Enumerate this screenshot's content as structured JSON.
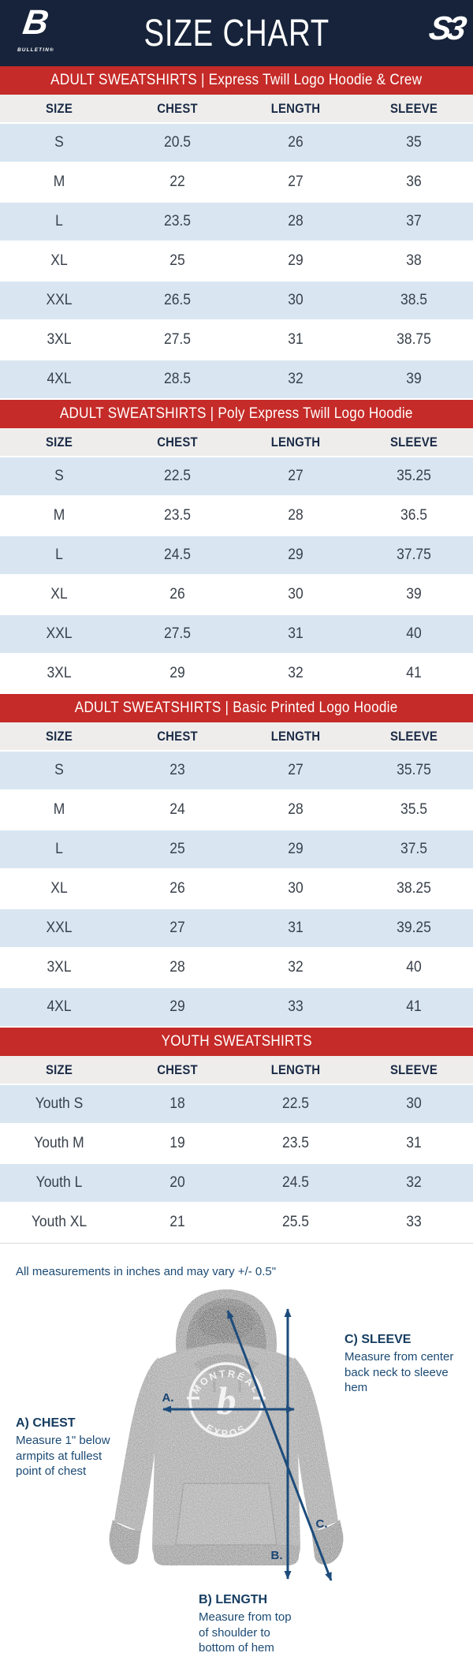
{
  "header": {
    "title": "SIZE CHART",
    "left_logo_letter": "B",
    "left_logo_text": "BULLETIN®",
    "right_logo_text": "S3"
  },
  "tables": [
    {
      "banner": "ADULT SWEATSHIRTS | Express Twill Logo Hoodie & Crew",
      "columns": [
        "SIZE",
        "CHEST",
        "LENGTH",
        "SLEEVE"
      ],
      "rows": [
        [
          "S",
          "20.5",
          "26",
          "35"
        ],
        [
          "M",
          "22",
          "27",
          "36"
        ],
        [
          "L",
          "23.5",
          "28",
          "37"
        ],
        [
          "XL",
          "25",
          "29",
          "38"
        ],
        [
          "XXL",
          "26.5",
          "30",
          "38.5"
        ],
        [
          "3XL",
          "27.5",
          "31",
          "38.75"
        ],
        [
          "4XL",
          "28.5",
          "32",
          "39"
        ]
      ]
    },
    {
      "banner": "ADULT SWEATSHIRTS | Poly Express Twill Logo Hoodie",
      "columns": [
        "SIZE",
        "CHEST",
        "LENGTH",
        "SLEEVE"
      ],
      "rows": [
        [
          "S",
          "22.5",
          "27",
          "35.25"
        ],
        [
          "M",
          "23.5",
          "28",
          "36.5"
        ],
        [
          "L",
          "24.5",
          "29",
          "37.75"
        ],
        [
          "XL",
          "26",
          "30",
          "39"
        ],
        [
          "XXL",
          "27.5",
          "31",
          "40"
        ],
        [
          "3XL",
          "29",
          "32",
          "41"
        ]
      ]
    },
    {
      "banner": "ADULT SWEATSHIRTS | Basic Printed Logo Hoodie",
      "columns": [
        "SIZE",
        "CHEST",
        "LENGTH",
        "SLEEVE"
      ],
      "rows": [
        [
          "S",
          "23",
          "27",
          "35.75"
        ],
        [
          "M",
          "24",
          "28",
          "35.5"
        ],
        [
          "L",
          "25",
          "29",
          "37.5"
        ],
        [
          "XL",
          "26",
          "30",
          "38.25"
        ],
        [
          "XXL",
          "27",
          "31",
          "39.25"
        ],
        [
          "3XL",
          "28",
          "32",
          "40"
        ],
        [
          "4XL",
          "29",
          "33",
          "41"
        ]
      ]
    },
    {
      "banner": "YOUTH SWEATSHIRTS",
      "columns": [
        "SIZE",
        "CHEST",
        "LENGTH",
        "SLEEVE"
      ],
      "rows": [
        [
          "Youth S",
          "18",
          "22.5",
          "30"
        ],
        [
          "Youth M",
          "19",
          "23.5",
          "31"
        ],
        [
          "Youth L",
          "20",
          "24.5",
          "32"
        ],
        [
          "Youth XL",
          "21",
          "25.5",
          "33"
        ]
      ]
    }
  ],
  "note": "All measurements in inches and may vary +/- 0.5\"",
  "diagram": {
    "chest": {
      "label": "A.",
      "heading": "A) CHEST",
      "lines": [
        "Measure 1\" below",
        "armpits at fullest",
        "point of chest"
      ]
    },
    "length": {
      "label": "B.",
      "heading": "B) LENGTH",
      "lines": [
        "Measure from top",
        "of shoulder to",
        "bottom of hem"
      ]
    },
    "sleeve": {
      "label": "C.",
      "heading": "C) SLEEVE",
      "lines": [
        "Measure from center",
        "back neck to sleeve hem"
      ]
    },
    "logo_top": "MONTRÉAL",
    "logo_bottom": "EXPOS",
    "logo_center": "b"
  },
  "colors": {
    "navy": "#16233A",
    "red": "#C52B28",
    "row_blue": "#D9E6F1",
    "header_gray": "#EEEDEB",
    "annotation": "#1B4A74"
  }
}
